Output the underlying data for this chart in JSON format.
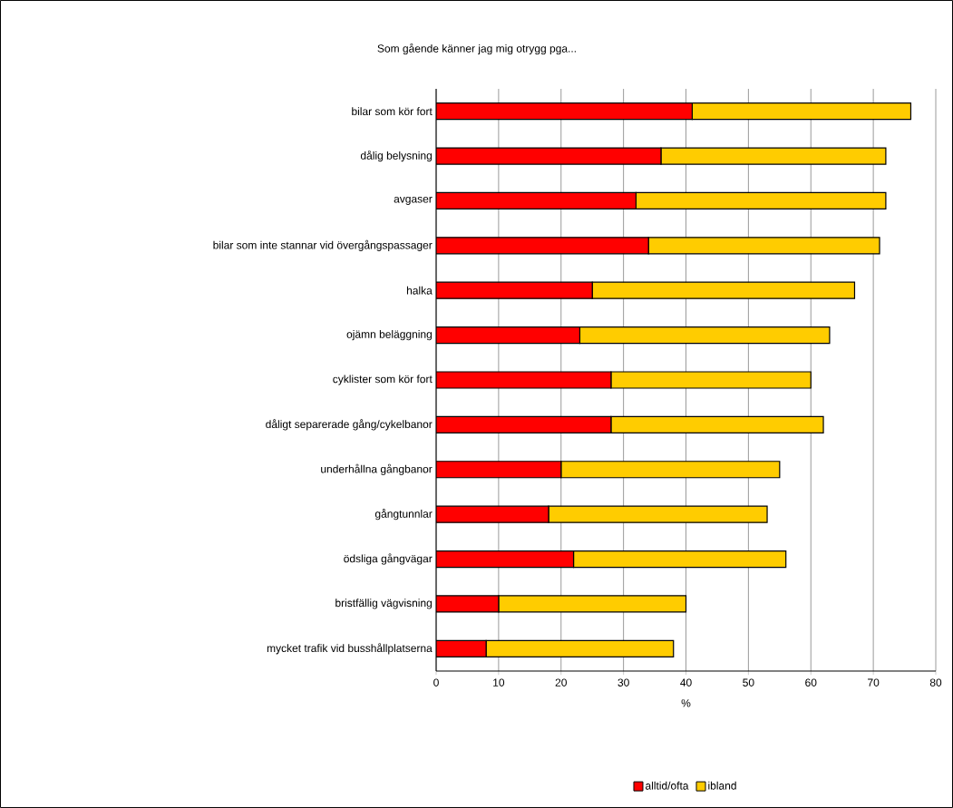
{
  "chart_data": {
    "type": "bar",
    "orientation": "horizontal",
    "stacked": true,
    "title": "Som gående känner jag mig otrygg pga...",
    "xlabel": "%",
    "categories": [
      "bilar som kör fort",
      "dålig belysning",
      "avgaser",
      "bilar som inte stannar vid övergångspassager",
      "halka",
      "ojämn beläggning",
      "cyklister som kör fort",
      "dåligt separerade gång/cykelbanor",
      "underhållna gångbanor",
      "gångtunnlar",
      "ödsliga gångvägar",
      "bristfällig vägvisning",
      "mycket trafik vid busshållplatserna"
    ],
    "series": [
      {
        "name": "alltid/ofta",
        "color": "#ff0000",
        "values": [
          41,
          36,
          32,
          34,
          25,
          23,
          28,
          28,
          20,
          18,
          22,
          10,
          8
        ]
      },
      {
        "name": "ibland",
        "color": "#ffcc00",
        "values": [
          35,
          36,
          40,
          37,
          42,
          40,
          32,
          34,
          35,
          35,
          34,
          30,
          30
        ]
      }
    ],
    "xlim": [
      0,
      80
    ],
    "xticks": [
      0,
      10,
      20,
      30,
      40,
      50,
      60,
      70,
      80
    ],
    "grid": "x",
    "legend": "bottom"
  }
}
